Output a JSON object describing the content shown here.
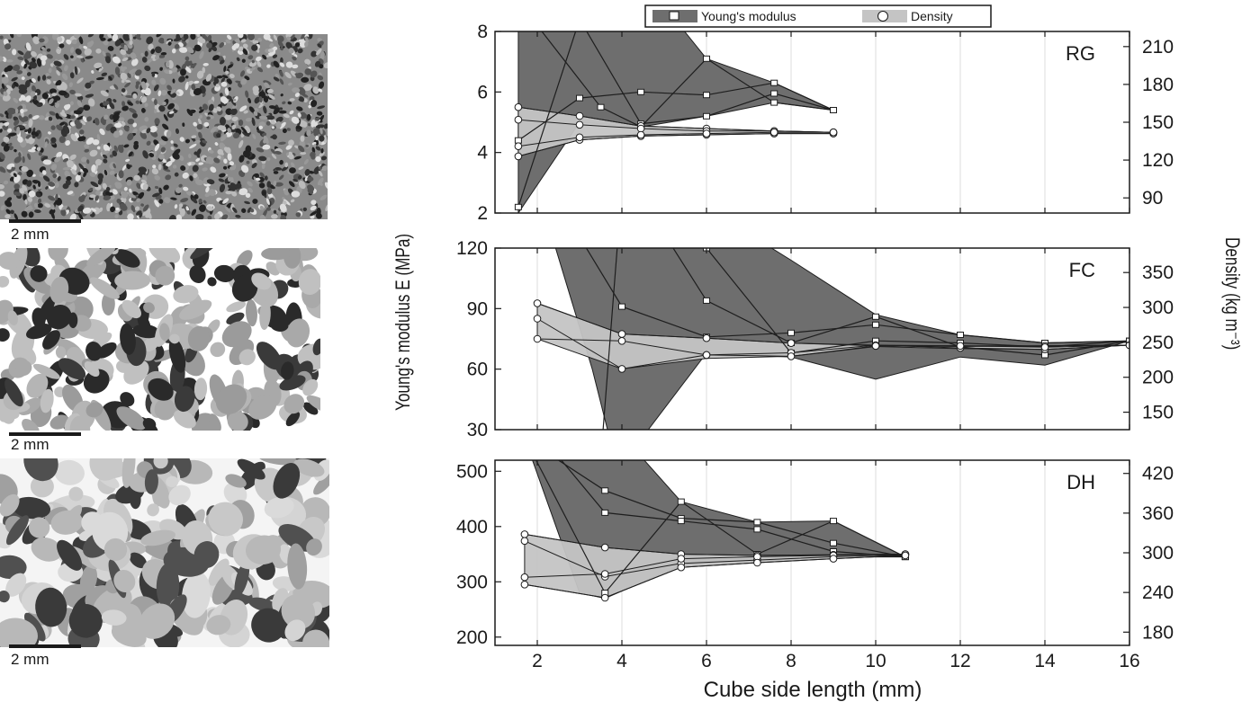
{
  "images": [
    {
      "name": "rg",
      "scale_bar": "2 mm"
    },
    {
      "name": "fc",
      "scale_bar": "2 mm"
    },
    {
      "name": "dh",
      "scale_bar": "2 mm"
    }
  ],
  "legend": {
    "youngs": "Young's modulus",
    "density": "Density",
    "placement": "top-center"
  },
  "chart_data": [
    {
      "type": "line",
      "panel": "RG",
      "xlabel": "Cube side length (mm)",
      "ylabel": "Young's modulus E (MPa)",
      "y2label": "Density (kg m⁻³)",
      "xlim": [
        1,
        16
      ],
      "xticks": [
        2,
        4,
        6,
        8,
        10,
        12,
        14,
        16
      ],
      "ylim": [
        2,
        8
      ],
      "yticks": [
        2,
        4,
        6,
        8
      ],
      "y2lim": [
        78,
        222
      ],
      "y2ticks": [
        90,
        120,
        150,
        180,
        210
      ],
      "grid": true,
      "youngs_series": [
        {
          "x": [
            1.55,
            3.0,
            4.45,
            6.0,
            7.6,
            9.0
          ],
          "y": [
            4.4,
            5.8,
            6.0,
            5.9,
            6.3,
            5.4
          ]
        },
        {
          "x": [
            1.55,
            3.0,
            4.45,
            6.0,
            7.6,
            9.0
          ],
          "y": [
            2.2,
            8.4,
            4.95,
            5.2,
            5.95,
            5.4
          ]
        },
        {
          "x": [
            1.55,
            3.5,
            4.45,
            6.0,
            7.6,
            9.0
          ],
          "y": [
            9.0,
            5.5,
            4.85,
            7.1,
            5.65,
            5.4
          ]
        }
      ],
      "youngs_envelope": {
        "x": [
          1.55,
          3.0,
          4.45,
          6.0,
          7.6,
          9.0
        ],
        "upper": [
          12.0,
          12.0,
          9.8,
          7.1,
          6.3,
          5.4
        ],
        "lower": [
          2.0,
          5.0,
          4.85,
          5.2,
          5.65,
          5.4
        ]
      },
      "density_series": [
        {
          "x": [
            1.55,
            3.0,
            4.45,
            6.0,
            7.6,
            9.0
          ],
          "y": [
            162,
            155,
            147,
            145,
            143,
            142
          ]
        },
        {
          "x": [
            1.55,
            3.0,
            4.45,
            6.0,
            7.6,
            9.0
          ],
          "y": [
            152,
            148,
            145,
            143,
            143,
            142
          ]
        },
        {
          "x": [
            1.55,
            3.0,
            4.45,
            6.0,
            7.6,
            9.0
          ],
          "y": [
            123,
            136,
            139,
            140,
            141,
            141
          ]
        },
        {
          "x": [
            1.55,
            3.0,
            4.45,
            6.0,
            7.6,
            9.0
          ],
          "y": [
            131,
            138,
            140,
            141,
            142,
            142
          ]
        }
      ],
      "density_envelope": {
        "x": [
          1.55,
          3.0,
          4.45,
          6.0,
          7.6,
          9.0
        ],
        "upper": [
          162,
          155,
          147,
          145,
          143,
          142
        ],
        "lower": [
          123,
          136,
          139,
          140,
          141,
          141
        ]
      }
    },
    {
      "type": "line",
      "panel": "FC",
      "xlim": [
        1,
        16
      ],
      "xticks": [
        2,
        4,
        6,
        8,
        10,
        12,
        14,
        16
      ],
      "ylim": [
        30,
        120
      ],
      "yticks": [
        30,
        60,
        90,
        120
      ],
      "y2lim": [
        125,
        385
      ],
      "y2ticks": [
        150,
        200,
        250,
        300,
        350
      ],
      "grid": true,
      "youngs_series": [
        {
          "x": [
            2.0,
            4.0,
            6.0,
            8.0,
            10.0,
            12.0,
            14.0,
            16.0
          ],
          "y": [
            160,
            91,
            76,
            78,
            82,
            77,
            73,
            74
          ]
        },
        {
          "x": [
            2.0,
            4.0,
            6.0,
            8.0,
            10.0,
            12.0,
            14.0,
            16.0
          ],
          "y": [
            140,
            160,
            94,
            73,
            86,
            71,
            67,
            74
          ]
        },
        {
          "x": [
            3.5,
            4.0,
            6.0,
            8.0,
            10.0,
            12.0,
            14.0,
            16.0
          ],
          "y": [
            15,
            150,
            120,
            68,
            74,
            73,
            71,
            74
          ]
        }
      ],
      "youngs_envelope": {
        "x": [
          2.0,
          3.3,
          3.9,
          6.0,
          8.0,
          10.0,
          12.0,
          14.0,
          16.0
        ],
        "upper": [
          160,
          160,
          160,
          140,
          114,
          87,
          77,
          73,
          74
        ],
        "lower": [
          150,
          60,
          10,
          68,
          66,
          55,
          66,
          62,
          74
        ]
      },
      "density_series": [
        {
          "x": [
            2.0,
            4.0,
            6.0,
            8.0,
            10.0,
            12.0,
            14.0,
            16.0
          ],
          "y": [
            306,
            262,
            256,
            249,
            245,
            244,
            245,
            246
          ]
        },
        {
          "x": [
            2.0,
            4.0,
            6.0,
            8.0,
            10.0,
            12.0,
            14.0,
            16.0
          ],
          "y": [
            284,
            212,
            232,
            235,
            246,
            242,
            240,
            246
          ]
        },
        {
          "x": [
            2.0,
            4.0,
            6.0,
            8.0,
            10.0,
            12.0,
            14.0,
            16.0
          ],
          "y": [
            255,
            252,
            232,
            230,
            245,
            245,
            243,
            246
          ]
        }
      ],
      "density_envelope": {
        "x": [
          2.0,
          4.0,
          6.0,
          8.0,
          10.0,
          12.0,
          14.0,
          16.0
        ],
        "upper": [
          306,
          262,
          256,
          249,
          246,
          245,
          245,
          246
        ],
        "lower": [
          255,
          212,
          227,
          230,
          244,
          241,
          240,
          246
        ]
      }
    },
    {
      "type": "line",
      "panel": "DH",
      "xlim": [
        1,
        16
      ],
      "xticks": [
        2,
        4,
        6,
        8,
        10,
        12,
        14,
        16
      ],
      "ylim": [
        185,
        520
      ],
      "yticks": [
        200,
        300,
        400,
        500
      ],
      "y2lim": [
        160,
        440
      ],
      "y2ticks": [
        180,
        240,
        300,
        360,
        420
      ],
      "grid": true,
      "youngs_series": [
        {
          "x": [
            1.7,
            3.6,
            5.4,
            7.2,
            9.0,
            10.7
          ],
          "y": [
            560,
            465,
            415,
            408,
            370,
            345
          ]
        },
        {
          "x": [
            1.7,
            3.6,
            5.4,
            7.2,
            9.0,
            10.7
          ],
          "y": [
            600,
            425,
            410,
            395,
            355,
            345
          ]
        },
        {
          "x": [
            1.7,
            3.6,
            5.4,
            7.2,
            9.0,
            10.7
          ],
          "y": [
            560,
            280,
            445,
            350,
            410,
            345
          ]
        }
      ],
      "youngs_envelope": {
        "x": [
          1.7,
          3.0,
          3.6,
          5.4,
          7.2,
          9.0,
          10.7
        ],
        "upper": [
          600,
          600,
          600,
          445,
          408,
          410,
          345
        ],
        "lower": [
          560,
          280,
          270,
          330,
          340,
          345,
          345
        ]
      },
      "density_series": [
        {
          "x": [
            1.7,
            3.6,
            5.4,
            7.2,
            9.0,
            10.7
          ],
          "y": [
            328,
            308,
            298,
            296,
            297,
            298
          ]
        },
        {
          "x": [
            1.7,
            3.6,
            5.4,
            7.2,
            9.0,
            10.7
          ],
          "y": [
            318,
            264,
            284,
            289,
            294,
            297
          ]
        },
        {
          "x": [
            1.7,
            3.6,
            5.4,
            7.2,
            9.0,
            10.7
          ],
          "y": [
            263,
            268,
            291,
            294,
            296,
            298
          ]
        },
        {
          "x": [
            1.7,
            3.6,
            5.4,
            7.2,
            9.0,
            10.7
          ],
          "y": [
            252,
            232,
            278,
            285,
            291,
            296
          ]
        }
      ],
      "density_envelope": {
        "x": [
          1.7,
          3.6,
          5.4,
          7.2,
          9.0,
          10.7
        ],
        "upper": [
          328,
          308,
          298,
          296,
          297,
          298
        ],
        "lower": [
          252,
          232,
          278,
          285,
          291,
          296
        ]
      }
    }
  ],
  "colors": {
    "youngs_fill": "#6e6e6e",
    "density_fill": "#c4c4c4",
    "line": "#1e1e1e",
    "grid": "#dcdcdc",
    "background": "#ffffff",
    "micro_background": "#8a8a8a",
    "micro_dark": "#3a3a3a",
    "micro_light": "#d0d0d0"
  }
}
